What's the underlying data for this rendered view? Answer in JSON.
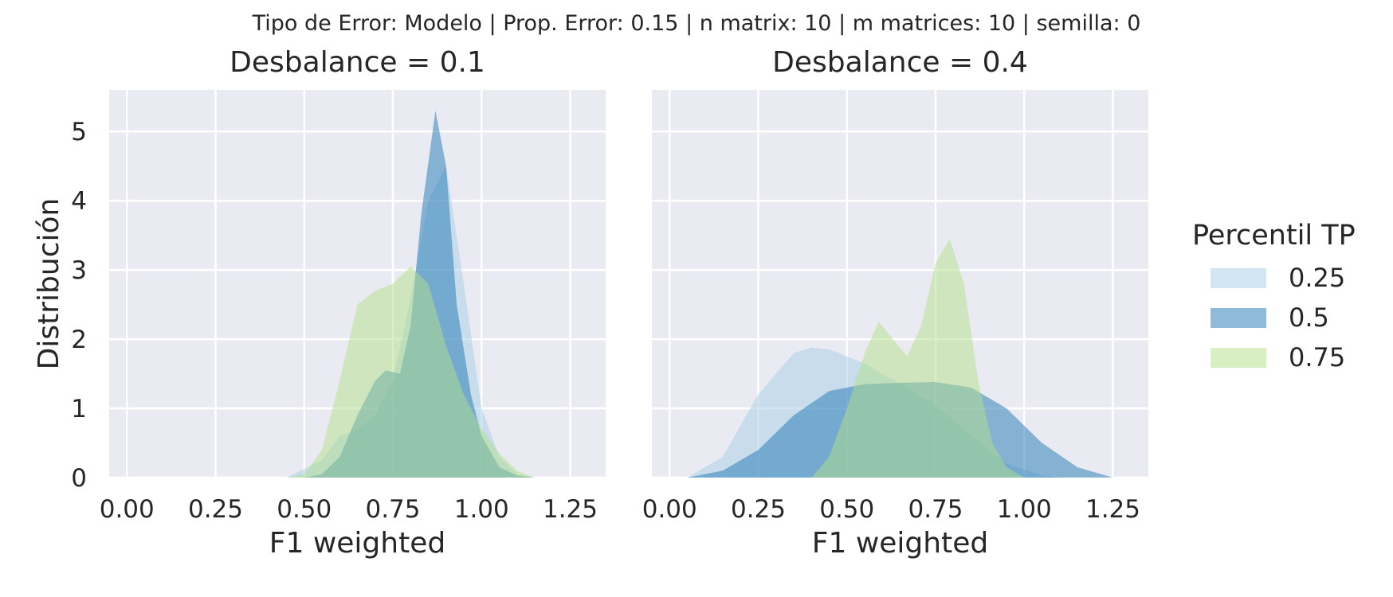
{
  "figure": {
    "suptitle": "Tipo de Error: Modelo | Prop. Error: 0.15 | n matrix: 10 | m matrices: 10 | semilla: 0",
    "background": "#ffffff",
    "panel_background": "#eaeaf2",
    "grid_color": "#ffffff"
  },
  "legend": {
    "title": "Percentil TP",
    "placement": "right",
    "items": [
      {
        "label": "0.25",
        "color": "#a6cee3"
      },
      {
        "label": "0.5",
        "color": "#1f78b4"
      },
      {
        "label": "0.75",
        "color": "#b2df8a"
      }
    ]
  },
  "chart_data": [
    {
      "type": "area",
      "title": "Desbalance = 0.1",
      "xlabel": "F1 weighted",
      "ylabel": "Distribución",
      "xlim": [
        -0.05,
        1.35
      ],
      "ylim": [
        0,
        5.6
      ],
      "xticks": [
        "0.00",
        "0.25",
        "0.50",
        "0.75",
        "1.00",
        "1.25"
      ],
      "yticks": [
        "0",
        "1",
        "2",
        "3",
        "4",
        "5"
      ],
      "grid": true,
      "series": [
        {
          "name": "0.25",
          "color": "#a6cee3",
          "opacity": 0.5,
          "x": [
            0.45,
            0.55,
            0.6,
            0.65,
            0.7,
            0.75,
            0.8,
            0.85,
            0.9,
            0.95,
            1.0,
            1.05,
            1.1,
            1.15
          ],
          "y": [
            0.0,
            0.25,
            0.6,
            0.7,
            0.9,
            1.4,
            2.6,
            4.0,
            4.5,
            2.8,
            1.0,
            0.3,
            0.05,
            0.0
          ]
        },
        {
          "name": "0.5",
          "color": "#1f78b4",
          "opacity": 0.5,
          "x": [
            0.5,
            0.55,
            0.6,
            0.65,
            0.7,
            0.73,
            0.77,
            0.8,
            0.83,
            0.87,
            0.9,
            0.93,
            0.97,
            1.0,
            1.05,
            1.1,
            1.15
          ],
          "y": [
            0.0,
            0.05,
            0.3,
            0.9,
            1.4,
            1.55,
            1.5,
            2.2,
            3.8,
            5.3,
            4.5,
            2.5,
            1.2,
            0.6,
            0.15,
            0.03,
            0.0
          ]
        },
        {
          "name": "0.75",
          "color": "#b2df8a",
          "opacity": 0.5,
          "x": [
            0.45,
            0.5,
            0.55,
            0.6,
            0.65,
            0.7,
            0.75,
            0.8,
            0.85,
            0.9,
            0.95,
            1.0,
            1.05,
            1.1,
            1.15
          ],
          "y": [
            0.0,
            0.05,
            0.4,
            1.4,
            2.5,
            2.7,
            2.8,
            3.05,
            2.8,
            1.9,
            1.2,
            0.7,
            0.35,
            0.1,
            0.0
          ]
        }
      ]
    },
    {
      "type": "area",
      "title": "Desbalance = 0.4",
      "xlabel": "F1 weighted",
      "ylabel": "",
      "xlim": [
        -0.05,
        1.35
      ],
      "ylim": [
        0,
        5.6
      ],
      "xticks": [
        "0.00",
        "0.25",
        "0.50",
        "0.75",
        "1.00",
        "1.25"
      ],
      "yticks": [],
      "grid": true,
      "series": [
        {
          "name": "0.25",
          "color": "#a6cee3",
          "opacity": 0.5,
          "x": [
            0.05,
            0.15,
            0.25,
            0.35,
            0.4,
            0.45,
            0.55,
            0.65,
            0.75,
            0.85,
            0.95,
            1.05,
            1.1
          ],
          "y": [
            0.0,
            0.3,
            1.2,
            1.8,
            1.88,
            1.85,
            1.65,
            1.35,
            1.05,
            0.6,
            0.2,
            0.03,
            0.0
          ]
        },
        {
          "name": "0.5",
          "color": "#1f78b4",
          "opacity": 0.5,
          "x": [
            0.05,
            0.15,
            0.25,
            0.35,
            0.45,
            0.55,
            0.65,
            0.75,
            0.85,
            0.95,
            1.05,
            1.15,
            1.25
          ],
          "y": [
            0.0,
            0.1,
            0.4,
            0.9,
            1.25,
            1.35,
            1.37,
            1.38,
            1.3,
            1.0,
            0.5,
            0.15,
            0.0
          ]
        },
        {
          "name": "0.75",
          "color": "#b2df8a",
          "opacity": 0.5,
          "x": [
            0.4,
            0.45,
            0.5,
            0.55,
            0.59,
            0.63,
            0.67,
            0.71,
            0.75,
            0.79,
            0.83,
            0.87,
            0.91,
            0.95,
            1.0
          ],
          "y": [
            0.0,
            0.3,
            1.0,
            1.8,
            2.25,
            2.0,
            1.75,
            2.2,
            3.1,
            3.45,
            2.8,
            1.4,
            0.5,
            0.15,
            0.0
          ]
        }
      ]
    }
  ]
}
